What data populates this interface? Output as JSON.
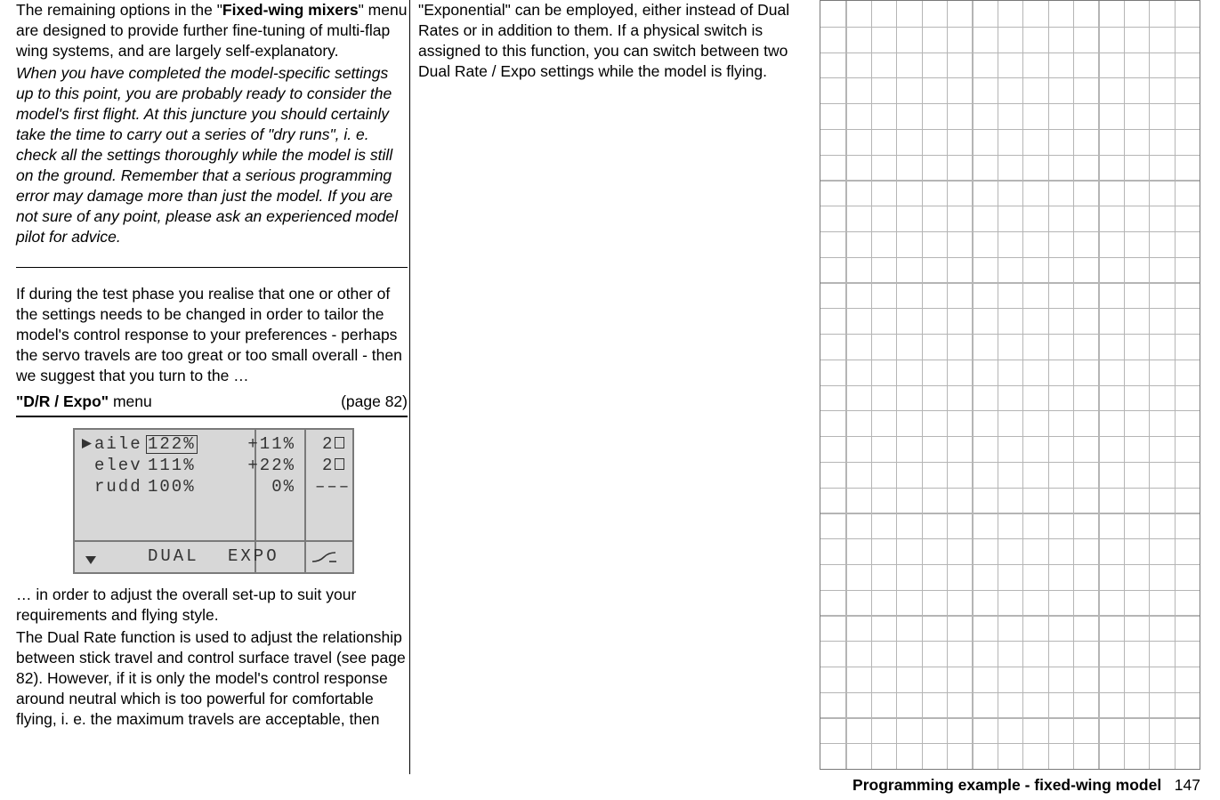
{
  "col1": {
    "p1_a": "The remaining options in the \"",
    "p1_bold": "Fixed-wing mixers",
    "p1_b": "\" menu are designed to provide further fine-tuning of multi-flap wing systems, and are largely self-explanatory.",
    "p2_italic": "When you have completed the model-specific settings up to this point, you are probably ready to consider the model's first flight. At this juncture you should certainly take the time to carry out a series of \"dry runs\", i. e. check all the settings thoroughly while the model is still on the ground. Remember that a serious programming error may damage more than just the model. If you are not sure of any point, please ask an experienced model pilot for advice.",
    "p3": "If during the test phase you realise that one or other of the settings needs to be changed in order to tailor the model's control response to your preferences - perhaps the servo travels are too great or too small overall - then we suggest that you turn to the …",
    "menuhead_left_a": "\"D/R / Expo\"",
    "menuhead_left_b": " menu",
    "menuhead_right": "(page 82)",
    "p4": "… in order to adjust the overall set-up to suit your requirements and flying style.",
    "p5": "The Dual Rate function is used to adjust the relationship between stick travel and control surface travel (see page 82). However, if it is only the model's control response around neutral which is too powerful for comfortable flying, i. e. the maximum travels are acceptable, then"
  },
  "col2": {
    "p1": "\"Exponential\" can be employed, either instead of Dual Rates or in addition to them. If a physical switch is assigned to this function, you can switch between two Dual Rate / Expo settings while the model is flying."
  },
  "lcd": {
    "rows": [
      {
        "name": "aile",
        "dual": "122%",
        "expo": "+11%",
        "sw": "2",
        "swbox": true,
        "selected": true
      },
      {
        "name": "elev",
        "dual": "111%",
        "expo": "+22%",
        "sw": "2",
        "swbox": true,
        "selected": false
      },
      {
        "name": "rudd",
        "dual": "100%",
        "expo": "0%",
        "sw": "–––",
        "swbox": false,
        "selected": false
      }
    ],
    "footer_dual": "DUAL",
    "footer_expo": "EXPO",
    "colors": {
      "bg": "#d7d7d7",
      "border": "#7a7a7a",
      "text": "#333333"
    }
  },
  "notes_grid": {
    "cols": 15,
    "rows": 30,
    "border_color": "#7a7a7a",
    "line_color": "#b5b5b5"
  },
  "footer": {
    "title": "Programming example - fixed-wing model",
    "page": "147"
  }
}
